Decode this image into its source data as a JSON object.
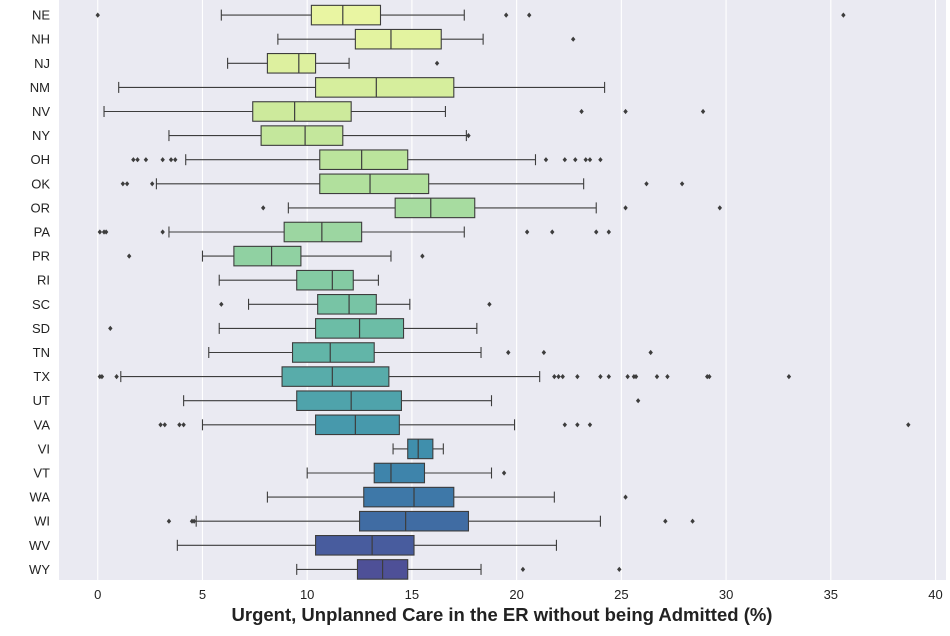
{
  "chart_data": {
    "type": "box",
    "orientation": "horizontal",
    "xlabel": "Urgent, Unplanned Care in the ER without being Admitted (%)",
    "ylabel": "",
    "xlim": [
      -1.85,
      40.5
    ],
    "xticks": [
      0,
      5,
      10,
      15,
      20,
      25,
      30,
      35,
      40
    ],
    "grid": true,
    "colors": {
      "background": "#EAEAF2",
      "grid": "#FFFFFF",
      "edge": "#3D3D3D",
      "text": "#222222"
    },
    "categories": [
      "NE",
      "NH",
      "NJ",
      "NM",
      "NV",
      "NY",
      "OH",
      "OK",
      "OR",
      "PA",
      "PR",
      "RI",
      "SC",
      "SD",
      "TN",
      "TX",
      "UT",
      "VA",
      "VI",
      "VT",
      "WA",
      "WI",
      "WV",
      "WY"
    ],
    "boxes": [
      {
        "label": "NE",
        "color": "#E9F5A2",
        "whisker_low": 5.9,
        "q1": 10.2,
        "median": 11.7,
        "q3": 13.5,
        "whisker_high": 17.5,
        "outliers": [
          0.0,
          19.5,
          20.6,
          35.6
        ]
      },
      {
        "label": "NH",
        "color": "#E3F3A0",
        "whisker_low": 8.6,
        "q1": 12.3,
        "median": 14.0,
        "q3": 16.4,
        "whisker_high": 18.4,
        "outliers": [
          22.7
        ]
      },
      {
        "label": "NJ",
        "color": "#DDF09F",
        "whisker_low": 6.2,
        "q1": 8.1,
        "median": 9.6,
        "q3": 10.4,
        "whisker_high": 12.0,
        "outliers": [
          16.2
        ]
      },
      {
        "label": "NM",
        "color": "#D6EE9D",
        "whisker_low": 1.0,
        "q1": 10.4,
        "median": 13.3,
        "q3": 17.0,
        "whisker_high": 24.2,
        "outliers": []
      },
      {
        "label": "NV",
        "color": "#CDEA9C",
        "whisker_low": 0.3,
        "q1": 7.4,
        "median": 9.4,
        "q3": 12.1,
        "whisker_high": 16.6,
        "outliers": [
          23.1,
          25.2,
          28.9
        ]
      },
      {
        "label": "NY",
        "color": "#C4E79C",
        "whisker_low": 3.4,
        "q1": 7.8,
        "median": 9.9,
        "q3": 11.7,
        "whisker_high": 17.6,
        "outliers": [
          17.7
        ]
      },
      {
        "label": "OH",
        "color": "#BBE49C",
        "whisker_low": 4.2,
        "q1": 10.6,
        "median": 12.6,
        "q3": 14.8,
        "whisker_high": 20.9,
        "outliers": [
          1.7,
          1.9,
          2.3,
          3.1,
          3.5,
          3.7,
          21.4,
          22.3,
          22.8,
          23.3,
          23.5,
          24.0
        ]
      },
      {
        "label": "OK",
        "color": "#B1E09D",
        "whisker_low": 2.8,
        "q1": 10.6,
        "median": 13.0,
        "q3": 15.8,
        "whisker_high": 23.2,
        "outliers": [
          1.2,
          1.4,
          2.6,
          26.2,
          27.9
        ]
      },
      {
        "label": "OR",
        "color": "#A7DCA0",
        "whisker_low": 9.1,
        "q1": 14.2,
        "median": 15.9,
        "q3": 18.0,
        "whisker_high": 23.8,
        "outliers": [
          7.9,
          25.2,
          29.7
        ]
      },
      {
        "label": "PA",
        "color": "#9CD6A1",
        "whisker_low": 3.4,
        "q1": 8.9,
        "median": 10.7,
        "q3": 12.6,
        "whisker_high": 17.5,
        "outliers": [
          0.1,
          0.3,
          0.4,
          3.1,
          20.5,
          21.7,
          23.8,
          24.4
        ]
      },
      {
        "label": "PR",
        "color": "#90D1A2",
        "whisker_low": 5.0,
        "q1": 6.5,
        "median": 8.3,
        "q3": 9.7,
        "whisker_high": 14.0,
        "outliers": [
          1.5,
          15.5
        ]
      },
      {
        "label": "RI",
        "color": "#84CBA3",
        "whisker_low": 5.8,
        "q1": 9.5,
        "median": 11.2,
        "q3": 12.2,
        "whisker_high": 13.4,
        "outliers": []
      },
      {
        "label": "SC",
        "color": "#78C4A5",
        "whisker_low": 7.2,
        "q1": 10.5,
        "median": 12.0,
        "q3": 13.3,
        "whisker_high": 14.9,
        "outliers": [
          5.9,
          18.7
        ]
      },
      {
        "label": "SD",
        "color": "#6CBDA6",
        "whisker_low": 5.8,
        "q1": 10.4,
        "median": 12.5,
        "q3": 14.6,
        "whisker_high": 18.1,
        "outliers": [
          0.6
        ]
      },
      {
        "label": "TN",
        "color": "#62B5A8",
        "whisker_low": 5.3,
        "q1": 9.3,
        "median": 11.1,
        "q3": 13.2,
        "whisker_high": 18.3,
        "outliers": [
          19.6,
          21.3,
          26.4
        ]
      },
      {
        "label": "TX",
        "color": "#58ACAA",
        "whisker_low": 1.1,
        "q1": 8.8,
        "median": 11.2,
        "q3": 13.9,
        "whisker_high": 21.1,
        "outliers": [
          0.1,
          0.2,
          0.9,
          21.8,
          22.0,
          22.2,
          22.9,
          24.0,
          24.4,
          25.3,
          25.6,
          25.7,
          26.7,
          27.2,
          29.1,
          29.2,
          33.0
        ]
      },
      {
        "label": "UT",
        "color": "#4FA3AB",
        "whisker_low": 4.1,
        "q1": 9.5,
        "median": 12.1,
        "q3": 14.5,
        "whisker_high": 18.8,
        "outliers": [
          25.8
        ]
      },
      {
        "label": "VA",
        "color": "#4799AC",
        "whisker_low": 5.0,
        "q1": 10.4,
        "median": 12.3,
        "q3": 14.4,
        "whisker_high": 19.9,
        "outliers": [
          3.0,
          3.2,
          3.9,
          4.1,
          22.3,
          22.9,
          23.5,
          38.7
        ]
      },
      {
        "label": "VI",
        "color": "#408FAC",
        "whisker_low": 14.1,
        "q1": 14.8,
        "median": 15.3,
        "q3": 16.0,
        "whisker_high": 16.5,
        "outliers": []
      },
      {
        "label": "VT",
        "color": "#3E84AB",
        "whisker_low": 10.0,
        "q1": 13.2,
        "median": 14.0,
        "q3": 15.6,
        "whisker_high": 18.8,
        "outliers": [
          19.4
        ]
      },
      {
        "label": "WA",
        "color": "#3E78A8",
        "whisker_low": 8.1,
        "q1": 12.7,
        "median": 15.1,
        "q3": 17.0,
        "whisker_high": 21.8,
        "outliers": [
          25.2
        ]
      },
      {
        "label": "WI",
        "color": "#406CA3",
        "whisker_low": 4.7,
        "q1": 12.5,
        "median": 14.7,
        "q3": 17.7,
        "whisker_high": 24.0,
        "outliers": [
          3.4,
          4.5,
          4.6,
          27.1,
          28.4
        ]
      },
      {
        "label": "WV",
        "color": "#485C9E",
        "whisker_low": 3.8,
        "q1": 10.4,
        "median": 13.1,
        "q3": 15.1,
        "whisker_high": 21.9,
        "outliers": []
      },
      {
        "label": "WY",
        "color": "#4E5097",
        "whisker_low": 9.5,
        "q1": 12.4,
        "median": 13.6,
        "q3": 14.8,
        "whisker_high": 18.3,
        "outliers": [
          20.3,
          24.9
        ]
      }
    ]
  }
}
